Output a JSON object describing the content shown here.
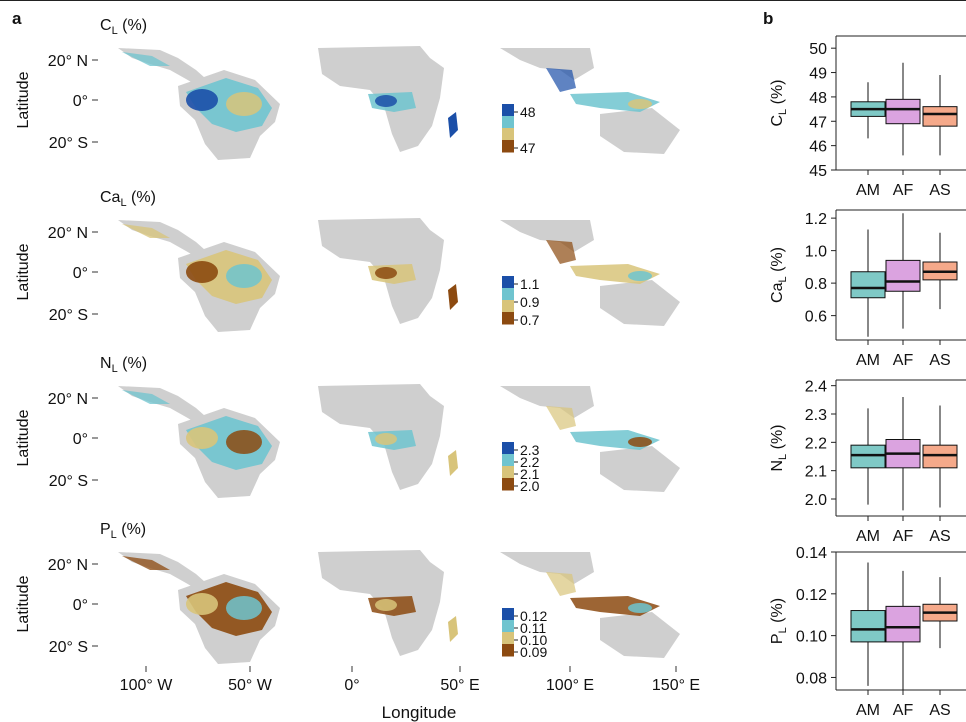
{
  "panel_a_label": "a",
  "panel_b_label": "b",
  "map_axis": {
    "xlabel": "Longitude",
    "ylabel": "Latitude",
    "lat_ticks": [
      "20° N",
      "0°",
      "20° S"
    ],
    "lon_ticks": [
      "100° W",
      "50° W",
      "0°",
      "50° E",
      "100° E",
      "150° E"
    ]
  },
  "region_colors": {
    "AM": "#7fc9c6",
    "AF": "#dba3e0",
    "AS": "#f5a98a"
  },
  "map_palette": {
    "high": "#1b4fa8",
    "mid": "#6fc4cf",
    "low_mid": "#d8c47a",
    "low": "#8c4a10",
    "land": "#cfcfcf"
  },
  "chart_data": [
    {
      "type": "box",
      "variable": "C",
      "subscript": "L",
      "unit": "(%)",
      "colorbar_ticks": [
        "48",
        "47"
      ],
      "categories": [
        "AM",
        "AF",
        "AS"
      ],
      "ylim": [
        45,
        50.5
      ],
      "yticks": [
        "45",
        "46",
        "47",
        "48",
        "49",
        "50"
      ],
      "ytick_values": [
        45,
        46,
        47,
        48,
        49,
        50
      ],
      "boxes": [
        {
          "min": 46.3,
          "q1": 47.2,
          "median": 47.5,
          "q3": 47.8,
          "max": 48.6
        },
        {
          "min": 45.6,
          "q1": 46.9,
          "median": 47.5,
          "q3": 47.9,
          "max": 49.4
        },
        {
          "min": 45.6,
          "q1": 46.8,
          "median": 47.3,
          "q3": 47.6,
          "max": 48.9
        }
      ]
    },
    {
      "type": "box",
      "variable": "Ca",
      "subscript": "L",
      "unit": "(%)",
      "colorbar_ticks": [
        "1.1",
        "0.9",
        "0.7"
      ],
      "categories": [
        "AM",
        "AF",
        "AS"
      ],
      "ylim": [
        0.45,
        1.25
      ],
      "yticks": [
        "0.6",
        "0.8",
        "1.0",
        "1.2"
      ],
      "ytick_values": [
        0.6,
        0.8,
        1.0,
        1.2
      ],
      "boxes": [
        {
          "min": 0.47,
          "q1": 0.71,
          "median": 0.77,
          "q3": 0.87,
          "max": 1.13
        },
        {
          "min": 0.52,
          "q1": 0.75,
          "median": 0.81,
          "q3": 0.94,
          "max": 1.23
        },
        {
          "min": 0.64,
          "q1": 0.82,
          "median": 0.87,
          "q3": 0.93,
          "max": 1.11
        }
      ]
    },
    {
      "type": "box",
      "variable": "N",
      "subscript": "L",
      "unit": "(%)",
      "colorbar_ticks": [
        "2.3",
        "2.2",
        "2.1",
        "2.0"
      ],
      "categories": [
        "AM",
        "AF",
        "AS"
      ],
      "ylim": [
        1.94,
        2.42
      ],
      "yticks": [
        "2.0",
        "2.1",
        "2.2",
        "2.3",
        "2.4"
      ],
      "ytick_values": [
        2.0,
        2.1,
        2.2,
        2.3,
        2.4
      ],
      "boxes": [
        {
          "min": 1.98,
          "q1": 2.11,
          "median": 2.155,
          "q3": 2.19,
          "max": 2.32
        },
        {
          "min": 1.96,
          "q1": 2.11,
          "median": 2.16,
          "q3": 2.21,
          "max": 2.36
        },
        {
          "min": 1.97,
          "q1": 2.11,
          "median": 2.155,
          "q3": 2.19,
          "max": 2.33
        }
      ]
    },
    {
      "type": "box",
      "variable": "P",
      "subscript": "L",
      "unit": "(%)",
      "colorbar_ticks": [
        "0.12",
        "0.11",
        "0.10",
        "0.09"
      ],
      "categories": [
        "AM",
        "AF",
        "AS"
      ],
      "ylim": [
        0.074,
        0.14
      ],
      "yticks": [
        "0.08",
        "0.10",
        "0.12",
        "0.14"
      ],
      "ytick_values": [
        0.08,
        0.1,
        0.12,
        0.14
      ],
      "boxes": [
        {
          "min": 0.076,
          "q1": 0.097,
          "median": 0.103,
          "q3": 0.112,
          "max": 0.135
        },
        {
          "min": 0.074,
          "q1": 0.097,
          "median": 0.104,
          "q3": 0.114,
          "max": 0.131
        },
        {
          "min": 0.094,
          "q1": 0.107,
          "median": 0.111,
          "q3": 0.115,
          "max": 0.128
        }
      ]
    }
  ]
}
